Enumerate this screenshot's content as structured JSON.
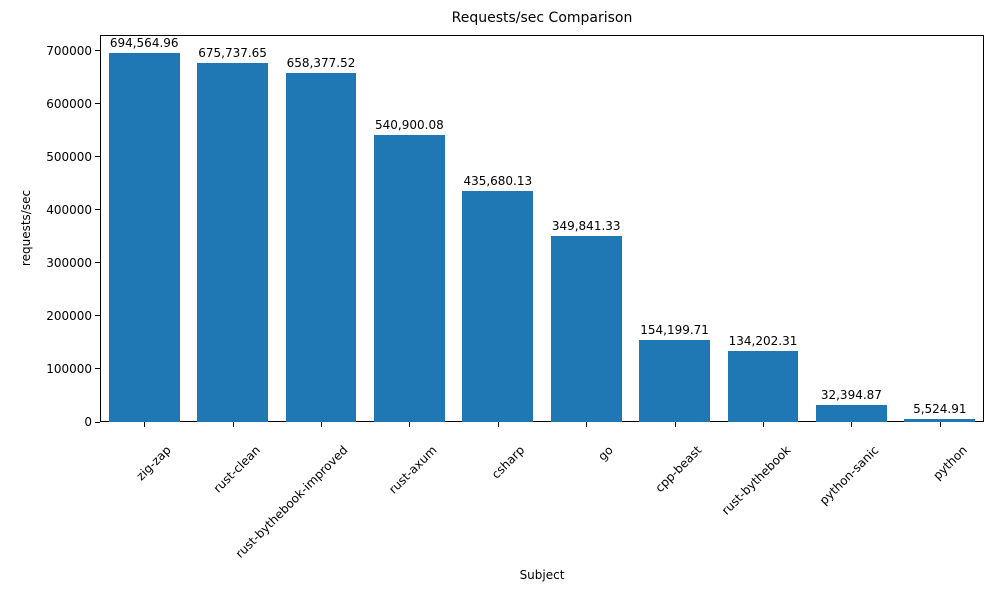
{
  "chart_data": {
    "type": "bar",
    "title": "Requests/sec Comparison",
    "xlabel": "Subject",
    "ylabel": "requests/sec",
    "categories": [
      "zig-zap",
      "rust-clean",
      "rust-bythebook-improved",
      "rust-axum",
      "csharp",
      "go",
      "cpp-beast",
      "rust-bythebook",
      "python-sanic",
      "python"
    ],
    "values": [
      694564.96,
      675737.65,
      658377.52,
      540900.08,
      435680.13,
      349841.33,
      154199.71,
      134202.31,
      32394.87,
      5524.91
    ],
    "value_labels": [
      "694,564.96",
      "675,737.65",
      "658,377.52",
      "540,900.08",
      "435,680.13",
      "349,841.33",
      "154,199.71",
      "134,202.31",
      "32,394.87",
      "5,524.91"
    ],
    "yticks": [
      0,
      100000,
      200000,
      300000,
      400000,
      500000,
      600000,
      700000
    ],
    "ylim": [
      0,
      729293
    ],
    "bar_color": "#1f77b4",
    "grid": false,
    "legend_position": "none"
  }
}
